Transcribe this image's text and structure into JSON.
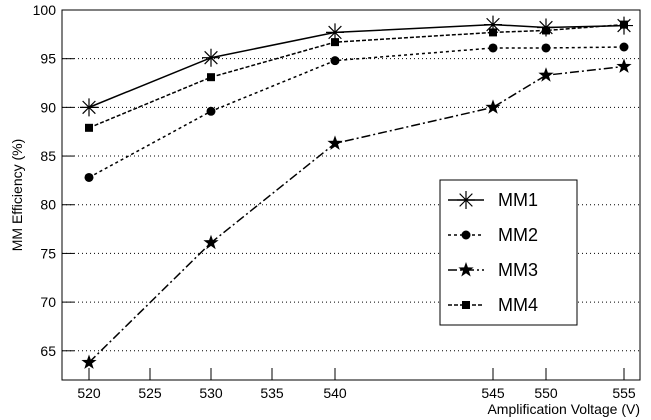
{
  "chart_data": {
    "type": "line",
    "xlabel": "Amplification Voltage (V)",
    "ylabel": "MM Efficiency (%)",
    "x": [
      520,
      530,
      540,
      545,
      550,
      555
    ],
    "xlim": [
      517.8,
      556
    ],
    "xticks": [
      520,
      525,
      530,
      535,
      540,
      545,
      550,
      555
    ],
    "ylim": [
      62,
      100
    ],
    "yticks": [
      65,
      70,
      75,
      80,
      85,
      90,
      95,
      100
    ],
    "grid": true,
    "legend": "right",
    "series": [
      {
        "name": "MM1",
        "color": "#000000",
        "marker": "asterisk",
        "values": [
          90.0,
          95.1,
          97.7,
          98.5,
          98.2,
          98.4
        ]
      },
      {
        "name": "MM2",
        "color": "#000000",
        "marker": "circle",
        "values": [
          82.8,
          89.6,
          94.8,
          96.1,
          96.1,
          96.2
        ]
      },
      {
        "name": "MM3",
        "color": "#000000",
        "marker": "star",
        "values": [
          63.8,
          76.1,
          86.3,
          90.0,
          93.3,
          94.2
        ]
      },
      {
        "name": "MM4",
        "color": "#000000",
        "marker": "square",
        "values": [
          87.9,
          93.1,
          96.7,
          97.7,
          97.9,
          98.5
        ]
      }
    ]
  }
}
